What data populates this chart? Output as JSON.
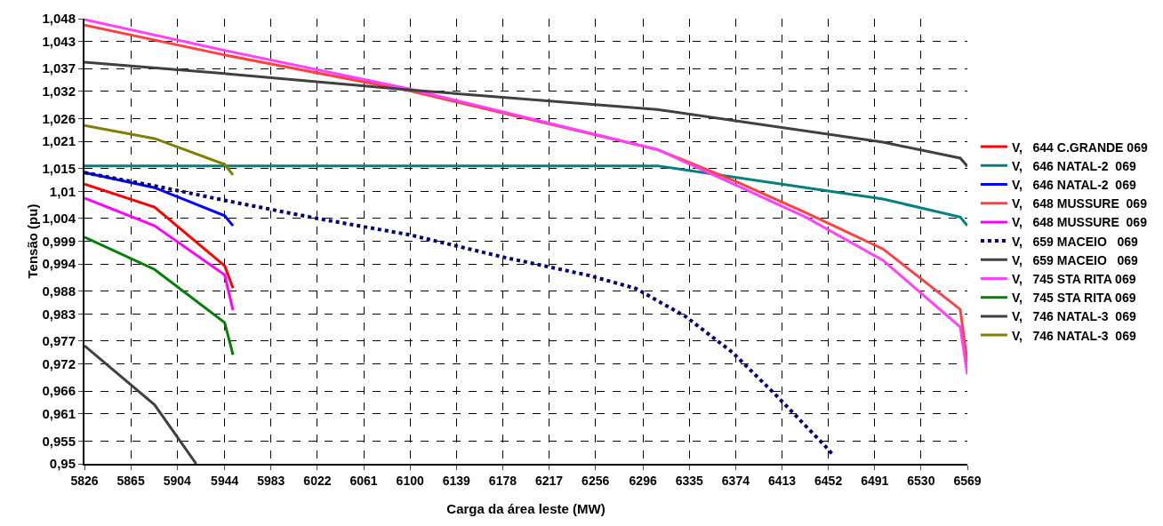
{
  "chart_data": {
    "type": "line",
    "xlabel": "Carga da área leste (MW)",
    "ylabel": "Tensão (pu)",
    "xlim": [
      5826,
      6569
    ],
    "xticks": [
      5826,
      5865,
      5904,
      5944,
      5983,
      6022,
      6061,
      6100,
      6139,
      6178,
      6217,
      6256,
      6296,
      6335,
      6374,
      6413,
      6452,
      6491,
      6530,
      6569
    ],
    "ylim": [
      0.95,
      1.048
    ],
    "yticks": [
      {
        "value": 0.95,
        "label": "0,95"
      },
      {
        "value": 0.955,
        "label": "0,955"
      },
      {
        "value": 0.961,
        "label": "0,961"
      },
      {
        "value": 0.966,
        "label": "0,966"
      },
      {
        "value": 0.972,
        "label": "0,972"
      },
      {
        "value": 0.977,
        "label": "0,977"
      },
      {
        "value": 0.983,
        "label": "0,983"
      },
      {
        "value": 0.988,
        "label": "0,988"
      },
      {
        "value": 0.994,
        "label": "0,994"
      },
      {
        "value": 0.999,
        "label": "0,999"
      },
      {
        "value": 1.004,
        "label": "1,004"
      },
      {
        "value": 1.01,
        "label": "1,01"
      },
      {
        "value": 1.015,
        "label": "1,015"
      },
      {
        "value": 1.021,
        "label": "1,021"
      },
      {
        "value": 1.026,
        "label": "1,026"
      },
      {
        "value": 1.032,
        "label": "1,032"
      },
      {
        "value": 1.037,
        "label": "1,037"
      },
      {
        "value": 1.043,
        "label": "1,043"
      },
      {
        "value": 1.048,
        "label": "1,048"
      }
    ],
    "grid": true,
    "legend": "right",
    "marker": "none",
    "line_style": "solid",
    "series": [
      {
        "name": "V,   644 C.GRANDE 069",
        "color": "#ff0000",
        "x": [
          5826,
          5885,
          5944,
          5951
        ],
        "values": [
          1.0116,
          1.0065,
          0.9936,
          0.9887
        ]
      },
      {
        "name": "V,   646 NATAL-2  069",
        "color": "#008080",
        "x": [
          5826,
          5944,
          6308,
          6498,
          6563,
          6569
        ],
        "values": [
          1.0156,
          1.0156,
          1.0156,
          1.0083,
          1.0043,
          1.0024
        ]
      },
      {
        "name": "V,   646 NATAL-2  069",
        "color": "#0000ff",
        "x": [
          5826,
          5885,
          5944,
          5951
        ],
        "values": [
          1.0141,
          1.0108,
          1.0046,
          1.0024
        ]
      },
      {
        "name": "V,   648 MUSSURE  069",
        "color": "#ff4040",
        "x": [
          5826,
          5944,
          6100,
          6308,
          6374,
          6433,
          6498,
          6563,
          6569
        ],
        "values": [
          1.0466,
          1.04,
          1.0321,
          1.0192,
          1.0122,
          1.0053,
          0.9973,
          0.984,
          0.9723
        ]
      },
      {
        "name": "V,   648 MUSSURE  069",
        "color": "#ff00ff",
        "x": [
          5826,
          5885,
          5944,
          5951
        ],
        "values": [
          1.0085,
          1.0024,
          0.9916,
          0.9838
        ]
      },
      {
        "name": "V,   659 MACEIO   069",
        "color": "#000080",
        "line_style": "dotted",
        "x": [
          5826,
          5885,
          5944,
          6022,
          6100,
          6180,
          6250,
          6290,
          6332,
          6371,
          6408,
          6449,
          6456
        ],
        "values": [
          1.0141,
          1.0112,
          1.008,
          1.004,
          1.0004,
          0.9954,
          0.9915,
          0.9886,
          0.9824,
          0.9746,
          0.9651,
          0.954,
          0.9519
        ]
      },
      {
        "name": "V,   659 MACEIO   069",
        "color": "#404040",
        "x": [
          5826,
          5885,
          5920
        ],
        "values": [
          0.976,
          0.963,
          0.95
        ]
      },
      {
        "name": "V,   745 STA RITA 069",
        "color": "#ff40ff",
        "x": [
          5826,
          5944,
          6100,
          6308,
          6374,
          6433,
          6498,
          6563,
          6569
        ],
        "values": [
          1.0478,
          1.041,
          1.0325,
          1.0192,
          1.0114,
          1.0043,
          0.9948,
          0.9801,
          0.9697
        ]
      },
      {
        "name": "V,   745 STA RITA 069",
        "color": "#008000",
        "x": [
          5826,
          5885,
          5944,
          5951
        ],
        "values": [
          0.9999,
          0.9928,
          0.9811,
          0.974
        ]
      },
      {
        "name": "V,   746 NATAL-3  069",
        "color": "#404040",
        "x": [
          5826,
          5944,
          6100,
          6308,
          6498,
          6563,
          6569
        ],
        "values": [
          1.0384,
          1.0359,
          1.0323,
          1.028,
          1.0208,
          1.0173,
          1.0155
        ]
      },
      {
        "name": "V,   746 NATAL-3  069",
        "color": "#808000",
        "x": [
          5826,
          5885,
          5944,
          5951
        ],
        "values": [
          1.0245,
          1.0216,
          1.0159,
          1.0136
        ]
      }
    ]
  }
}
